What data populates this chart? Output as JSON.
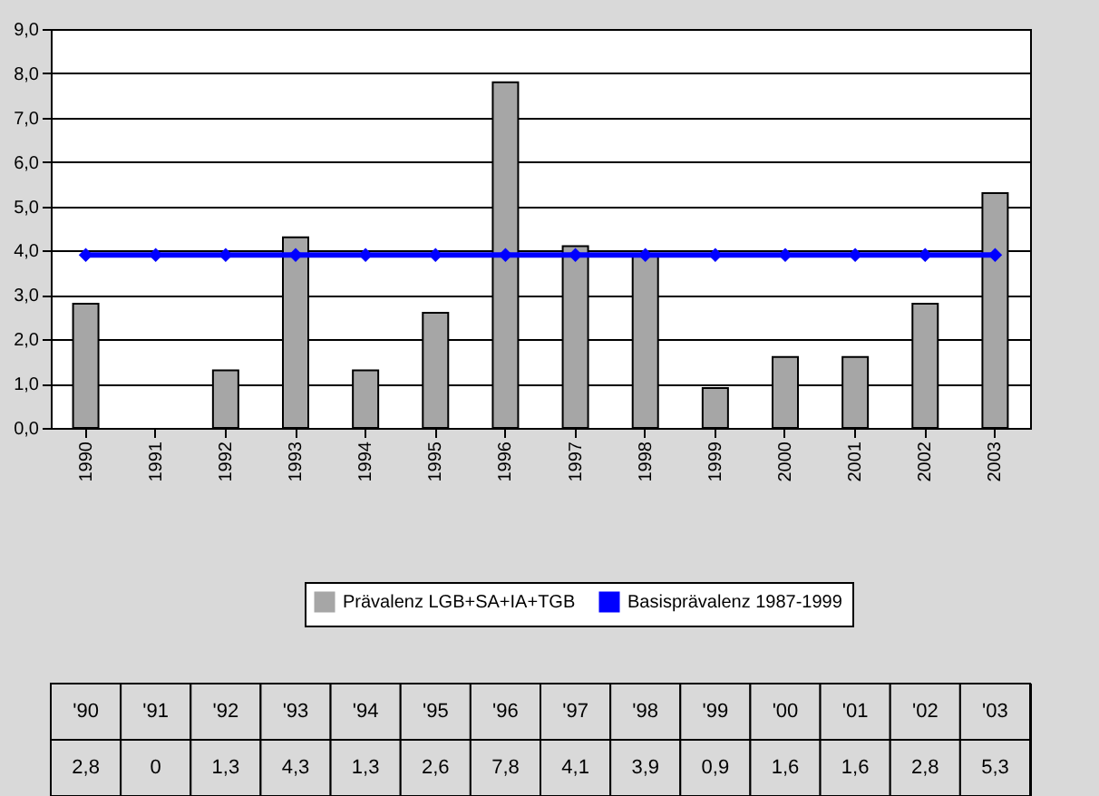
{
  "chart_data": {
    "type": "bar",
    "categories": [
      "1990",
      "1991",
      "1992",
      "1993",
      "1994",
      "1995",
      "1996",
      "1997",
      "1998",
      "1999",
      "2000",
      "2001",
      "2002",
      "2003"
    ],
    "series": [
      {
        "name": "Prävalenz LGB+SA+IA+TGB",
        "color": "#a6a6a6",
        "values": [
          2.8,
          0,
          1.3,
          4.3,
          1.3,
          2.6,
          7.8,
          4.1,
          3.9,
          0.9,
          1.6,
          1.6,
          2.8,
          5.3
        ],
        "value_labels": [
          "2,8",
          "0",
          "1,3",
          "4,3",
          "1,3",
          "2,6",
          "7,8",
          "4,1",
          "3,9",
          "0,9",
          "1,6",
          "1,6",
          "2,8",
          "5,3"
        ]
      },
      {
        "name": "Basisprävalenz 1987-1999",
        "type": "line",
        "color": "#0000ff",
        "marker": "diamond",
        "values": [
          3.9,
          3.9,
          3.9,
          3.9,
          3.9,
          3.9,
          3.9,
          3.9,
          3.9,
          3.9,
          3.9,
          3.9,
          3.9,
          3.9
        ]
      }
    ],
    "annotations": [
      "'90",
      "'91",
      "'92",
      "'93",
      "'94",
      "'95",
      "'96",
      "'97",
      "'98",
      "'99",
      "'00",
      "'01",
      "'02",
      "'03"
    ],
    "ylim": [
      0,
      9
    ],
    "yticks": [
      {
        "value": 0,
        "label": "0,0"
      },
      {
        "value": 1,
        "label": "1,0"
      },
      {
        "value": 2,
        "label": "2,0"
      },
      {
        "value": 3,
        "label": "3,0"
      },
      {
        "value": 4,
        "label": "4,0"
      },
      {
        "value": 5,
        "label": "5,0"
      },
      {
        "value": 6,
        "label": "6,0"
      },
      {
        "value": 7,
        "label": "7,0"
      },
      {
        "value": 8,
        "label": "8,0"
      },
      {
        "value": 9,
        "label": "9,0"
      }
    ],
    "grid": "y",
    "legend": "bottom"
  }
}
